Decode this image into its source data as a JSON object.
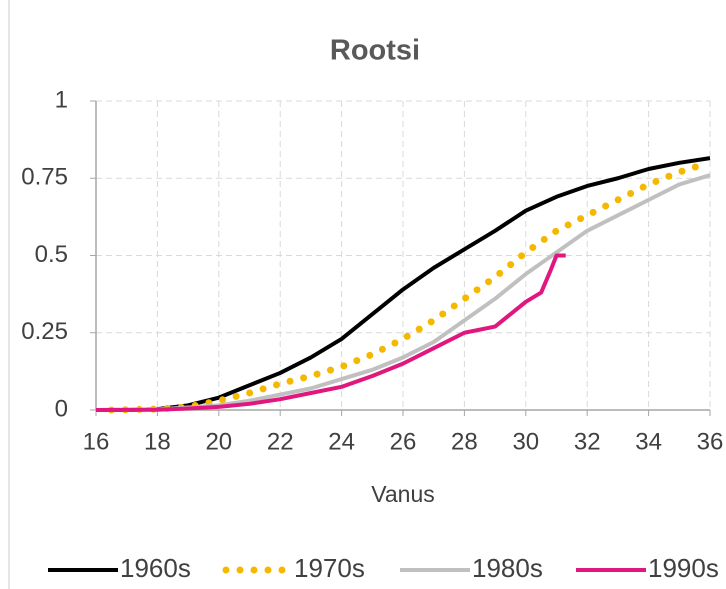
{
  "chart_data": {
    "type": "line",
    "title": "Rootsi",
    "xlabel": "Vanus",
    "xlim": [
      16,
      36
    ],
    "xticks": [
      16,
      18,
      20,
      22,
      24,
      26,
      28,
      30,
      32,
      34,
      36
    ],
    "ylim": [
      0,
      1
    ],
    "yticks": [
      0,
      0.25,
      0.5,
      0.75,
      1
    ],
    "grid": true,
    "legend": "bottom",
    "series": [
      {
        "name": "1960s",
        "color": "#000000",
        "style": "solid",
        "x": [
          16,
          17,
          18,
          19,
          20,
          21,
          22,
          23,
          24,
          25,
          26,
          27,
          28,
          29,
          30,
          31,
          32,
          33,
          34,
          35,
          36
        ],
        "values": [
          0,
          0,
          0.003,
          0.015,
          0.04,
          0.08,
          0.12,
          0.17,
          0.23,
          0.31,
          0.39,
          0.46,
          0.52,
          0.58,
          0.645,
          0.69,
          0.725,
          0.75,
          0.78,
          0.8,
          0.815
        ]
      },
      {
        "name": "1970s",
        "color": "#f5b800",
        "style": "dotted",
        "x": [
          16.5,
          18,
          19,
          20,
          21,
          22,
          23,
          24,
          25,
          26,
          27,
          28,
          29,
          30,
          31,
          32,
          33,
          34,
          35,
          35.8
        ],
        "values": [
          0,
          0.003,
          0.01,
          0.03,
          0.055,
          0.085,
          0.11,
          0.14,
          0.18,
          0.23,
          0.29,
          0.36,
          0.43,
          0.51,
          0.58,
          0.63,
          0.68,
          0.73,
          0.77,
          0.795
        ]
      },
      {
        "name": "1980s",
        "color": "#c0c0c0",
        "style": "solid",
        "x": [
          16,
          18,
          19,
          20,
          21,
          22,
          23,
          24,
          25,
          26,
          27,
          28,
          29,
          30,
          31,
          32,
          33,
          34,
          35,
          36
        ],
        "values": [
          0,
          0.002,
          0.008,
          0.015,
          0.03,
          0.05,
          0.07,
          0.1,
          0.13,
          0.17,
          0.22,
          0.29,
          0.36,
          0.44,
          0.51,
          0.58,
          0.63,
          0.68,
          0.73,
          0.76
        ]
      },
      {
        "name": "1990s",
        "color": "#e0177f",
        "style": "solid",
        "x": [
          16,
          18,
          19,
          20,
          21,
          22,
          23,
          24,
          25,
          26,
          27,
          28,
          29,
          30,
          30.5,
          30.8,
          31,
          31.3
        ],
        "values": [
          0,
          0.001,
          0.005,
          0.01,
          0.02,
          0.035,
          0.055,
          0.075,
          0.11,
          0.15,
          0.2,
          0.25,
          0.27,
          0.35,
          0.38,
          0.45,
          0.5,
          0.5
        ]
      }
    ]
  }
}
